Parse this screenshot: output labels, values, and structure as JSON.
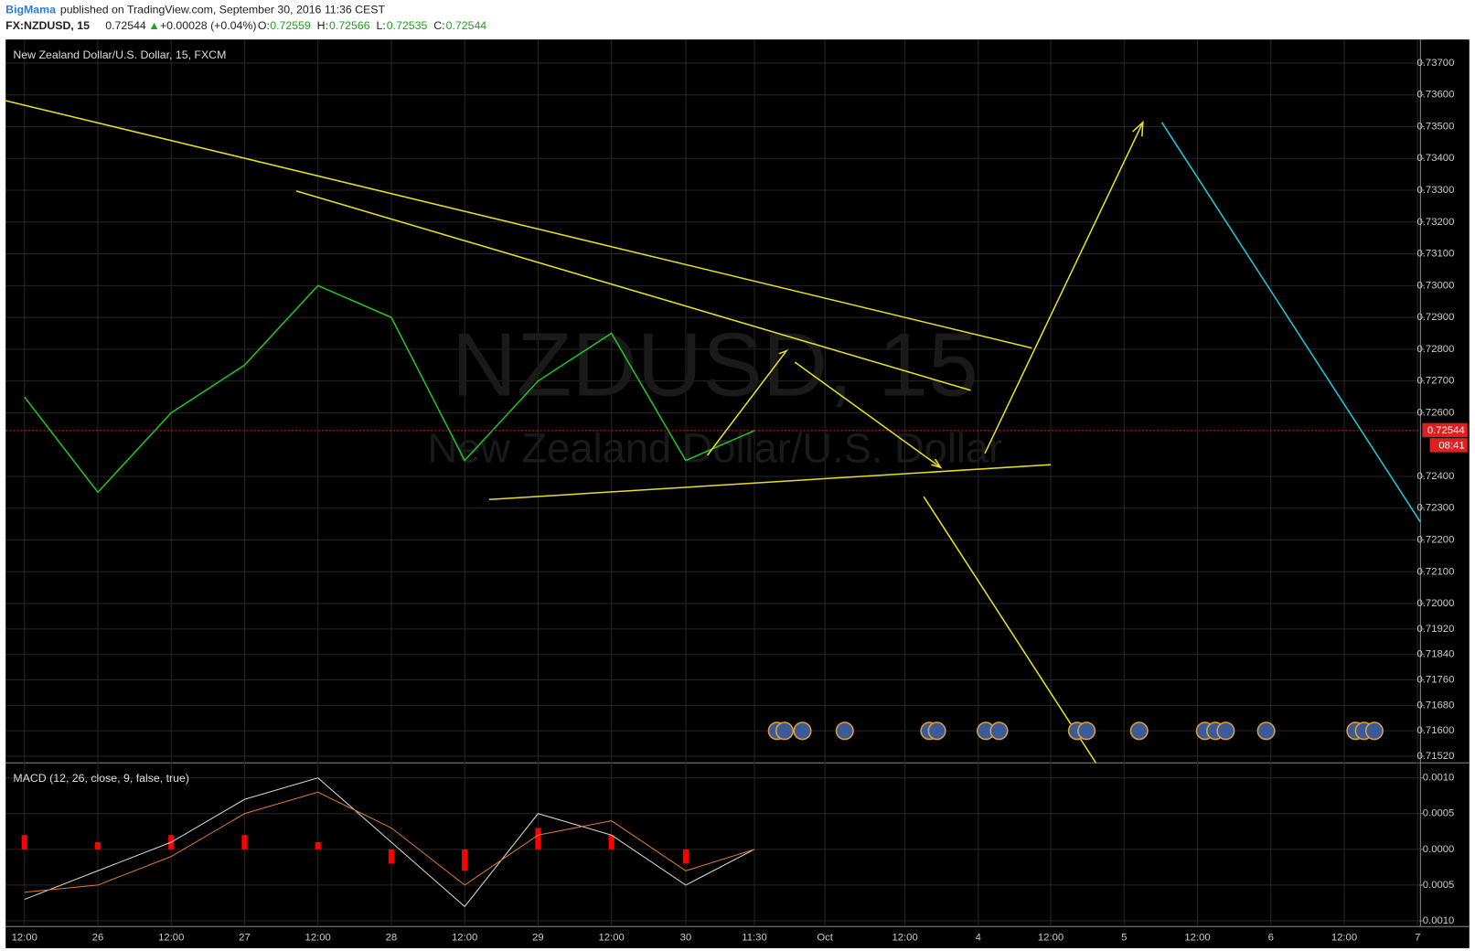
{
  "header": {
    "author": "BigMama",
    "published": "published on TradingView.com, September 30, 2016 11:36 CEST",
    "symbol": "FX:NZDUSD, 15",
    "last": "0.72544",
    "arrow": "▲",
    "change": "+0.00028 (+0.04%)",
    "o_label": "O:",
    "o": "0.72559",
    "h_label": "H:",
    "h": "0.72566",
    "l_label": "L:",
    "l": "0.72535",
    "c_label": "C:",
    "c": "0.72544"
  },
  "watermark": {
    "symbol": "NZDUSD, 15",
    "name": "New Zealand Dollar/U.S. Dollar"
  },
  "chart_data": [
    {
      "type": "line",
      "title": "New Zealand Dollar/U.S. Dollar, 15, FXCM",
      "categories": [
        "12:00",
        "26",
        "12:00",
        "27",
        "12:00",
        "28",
        "12:00",
        "29",
        "12:00",
        "30",
        "11:30",
        "Oct",
        "12:00",
        "4",
        "12:00",
        "5",
        "12:00",
        "6",
        "12:00",
        "7"
      ],
      "series": [
        {
          "color": "#21c521",
          "values": [
            0.7265,
            0.7235,
            0.726,
            0.7275,
            0.73,
            0.729,
            0.7245,
            0.727,
            0.7285,
            0.7245,
            0.72544,
            null,
            null,
            null,
            null,
            null,
            null,
            null,
            null,
            null
          ]
        }
      ],
      "last_price": {
        "value": 0.72544,
        "label": "0.72544"
      },
      "countdown": "08:41",
      "ylim": [
        0.71502,
        0.73774
      ],
      "yticks": [
        {
          "value": 0.737,
          "label": "0.73700"
        },
        {
          "value": 0.736,
          "label": "0.73600"
        },
        {
          "value": 0.735,
          "label": "0.73500"
        },
        {
          "value": 0.734,
          "label": "0.73400"
        },
        {
          "value": 0.733,
          "label": "0.73300"
        },
        {
          "value": 0.732,
          "label": "0.73200"
        },
        {
          "value": 0.731,
          "label": "0.73100"
        },
        {
          "value": 0.73,
          "label": "0.73000"
        },
        {
          "value": 0.729,
          "label": "0.72900"
        },
        {
          "value": 0.728,
          "label": "0.72800"
        },
        {
          "value": 0.727,
          "label": "0.72700"
        },
        {
          "value": 0.726,
          "label": "0.72600"
        },
        {
          "value": 0.724,
          "label": "0.72400"
        },
        {
          "value": 0.723,
          "label": "0.72300"
        },
        {
          "value": 0.722,
          "label": "0.72200"
        },
        {
          "value": 0.721,
          "label": "0.72100"
        },
        {
          "value": 0.72,
          "label": "0.72000"
        },
        {
          "value": 0.7192,
          "label": "0.71920"
        },
        {
          "value": 0.7184,
          "label": "0.71840"
        },
        {
          "value": 0.7176,
          "label": "0.71760"
        },
        {
          "value": 0.7168,
          "label": "0.71680"
        },
        {
          "value": 0.716,
          "label": "0.71600"
        },
        {
          "value": 0.7152,
          "label": "0.71520"
        }
      ],
      "grid": true
    },
    {
      "type": "macd",
      "title": "MACD (12, 26, close, 9, false, true)",
      "series": [
        {
          "color": "#d8d8d8",
          "values": [
            -0.0007,
            -0.0003,
            0.0001,
            0.0007,
            0.001,
            0.0001,
            -0.0008,
            0.0005,
            0.0002,
            -0.0005,
            0.0,
            null,
            null,
            null,
            null,
            null,
            null,
            null,
            null,
            null
          ]
        },
        {
          "color": "#e07a2a",
          "values": [
            -0.0006,
            -0.0005,
            -0.0001,
            0.0005,
            0.0008,
            0.0003,
            -0.0005,
            0.0002,
            0.0004,
            -0.0003,
            0.0,
            null,
            null,
            null,
            null,
            null,
            null,
            null,
            null,
            null
          ]
        }
      ],
      "histogram": {
        "color": "#ff0000",
        "values": [
          0.0002,
          0.0001,
          0.0002,
          0.0002,
          0.0001,
          -0.0002,
          -0.0003,
          0.0003,
          0.0002,
          -0.0002,
          0.0,
          null,
          null,
          null,
          null,
          null,
          null,
          null,
          null,
          null
        ]
      },
      "ylim": [
        -0.00108,
        0.00121
      ],
      "yticks": [
        {
          "value": 0.001,
          "label": "0.0010"
        },
        0.0005,
        {
          "value": 0,
          "label": "0.0000"
        },
        -0.0005,
        {
          "value": -0.001,
          "label": "-0.0010"
        }
      ],
      "grid": true
    }
  ]
}
